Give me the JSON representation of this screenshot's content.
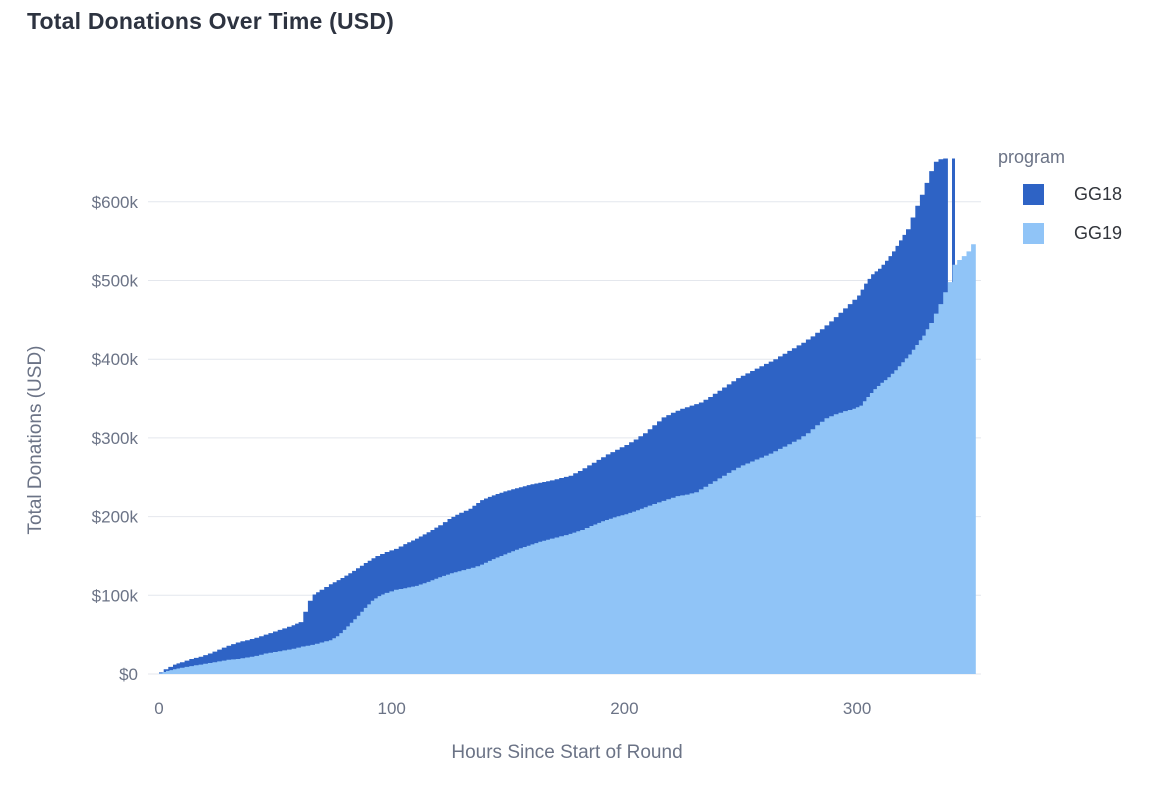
{
  "title": "Total Donations Over Time (USD)",
  "colors": {
    "gg18": "#2e63c5",
    "gg19": "#90c4f7",
    "grid": "#e4e7ed",
    "axis_text": "#6b7386",
    "title_text": "#2d3340",
    "legend_label_text": "#32353b"
  },
  "legend": {
    "title": "program",
    "position": "top-right-outside",
    "entries": [
      {
        "label": "GG18",
        "color": "#2e63c5"
      },
      {
        "label": "GG19",
        "color": "#90c4f7"
      }
    ]
  },
  "chart_data": {
    "type": "area",
    "subtype": "layered-cumulative-step",
    "title": "Total Donations Over Time (USD)",
    "xlabel": "Hours Since Start of Round",
    "ylabel": "Total Donations (USD)",
    "grid": true,
    "x_domain_hours": [
      0,
      351
    ],
    "y_domain_usd_k": [
      0,
      657
    ],
    "x_tick_values": [
      0,
      100,
      200,
      300
    ],
    "x_tick_labels": [
      "0",
      "100",
      "200",
      "300"
    ],
    "y_tick_values_usd_k": [
      0,
      100,
      200,
      300,
      400,
      500,
      600
    ],
    "y_tick_labels": [
      "$0",
      "$100k",
      "$200k",
      "$300k",
      "$400k",
      "$500k",
      "$600k"
    ],
    "series": [
      {
        "name": "GG18",
        "color": "#2e63c5",
        "units": "[hour, usd_thousands]",
        "points": [
          [
            0,
            2
          ],
          [
            2,
            6
          ],
          [
            4,
            9
          ],
          [
            6,
            12
          ],
          [
            9,
            15
          ],
          [
            13,
            19
          ],
          [
            17,
            22
          ],
          [
            21,
            26
          ],
          [
            25,
            31
          ],
          [
            29,
            36
          ],
          [
            33,
            40
          ],
          [
            37,
            43
          ],
          [
            41,
            46
          ],
          [
            45,
            50
          ],
          [
            49,
            54
          ],
          [
            53,
            58
          ],
          [
            57,
            62
          ],
          [
            60,
            66
          ],
          [
            62,
            79
          ],
          [
            64,
            93
          ],
          [
            66,
            101
          ],
          [
            69,
            107
          ],
          [
            73,
            114
          ],
          [
            78,
            122
          ],
          [
            83,
            131
          ],
          [
            88,
            141
          ],
          [
            93,
            150
          ],
          [
            97,
            155
          ],
          [
            101,
            159
          ],
          [
            105,
            165
          ],
          [
            110,
            172
          ],
          [
            115,
            180
          ],
          [
            120,
            189
          ],
          [
            124,
            197
          ],
          [
            129,
            205
          ],
          [
            133,
            210
          ],
          [
            138,
            221
          ],
          [
            143,
            227
          ],
          [
            148,
            232
          ],
          [
            153,
            236
          ],
          [
            158,
            240
          ],
          [
            163,
            243
          ],
          [
            168,
            246
          ],
          [
            172,
            249
          ],
          [
            176,
            252
          ],
          [
            180,
            258
          ],
          [
            184,
            265
          ],
          [
            188,
            272
          ],
          [
            192,
            279
          ],
          [
            196,
            285
          ],
          [
            200,
            291
          ],
          [
            204,
            298
          ],
          [
            208,
            306
          ],
          [
            212,
            316
          ],
          [
            216,
            326
          ],
          [
            220,
            332
          ],
          [
            224,
            337
          ],
          [
            228,
            341
          ],
          [
            232,
            345
          ],
          [
            236,
            352
          ],
          [
            240,
            360
          ],
          [
            244,
            368
          ],
          [
            248,
            376
          ],
          [
            252,
            382
          ],
          [
            256,
            388
          ],
          [
            260,
            394
          ],
          [
            264,
            400
          ],
          [
            268,
            407
          ],
          [
            272,
            414
          ],
          [
            276,
            421
          ],
          [
            280,
            429
          ],
          [
            284,
            438
          ],
          [
            288,
            448
          ],
          [
            292,
            459
          ],
          [
            296,
            470
          ],
          [
            300,
            481
          ],
          [
            303,
            496
          ],
          [
            306,
            508
          ],
          [
            309,
            515
          ],
          [
            312,
            525
          ],
          [
            315,
            537
          ],
          [
            318,
            551
          ],
          [
            321,
            565
          ],
          [
            323,
            580
          ],
          [
            325,
            595
          ],
          [
            327,
            609
          ],
          [
            329,
            624
          ],
          [
            331,
            639
          ],
          [
            333,
            651
          ],
          [
            335,
            654
          ],
          [
            337,
            655
          ],
          [
            339,
            657
          ]
        ],
        "gap_hours": [
          339,
          340.8
        ],
        "final_spike": {
          "from_hour": 340.8,
          "to_hour": 342.1,
          "value_usd_k": 655
        }
      },
      {
        "name": "GG19",
        "color": "#90c4f7",
        "units": "[hour, usd_thousands]",
        "points": [
          [
            0,
            1
          ],
          [
            3,
            4
          ],
          [
            6,
            6
          ],
          [
            9,
            8
          ],
          [
            13,
            10
          ],
          [
            17,
            12
          ],
          [
            21,
            14
          ],
          [
            25,
            16
          ],
          [
            29,
            18
          ],
          [
            33,
            19
          ],
          [
            37,
            21
          ],
          [
            41,
            23
          ],
          [
            45,
            26
          ],
          [
            49,
            28
          ],
          [
            53,
            30
          ],
          [
            57,
            32
          ],
          [
            61,
            35
          ],
          [
            65,
            37
          ],
          [
            69,
            40
          ],
          [
            73,
            43
          ],
          [
            76,
            48
          ],
          [
            79,
            56
          ],
          [
            82,
            65
          ],
          [
            85,
            74
          ],
          [
            88,
            84
          ],
          [
            91,
            93
          ],
          [
            94,
            99
          ],
          [
            97,
            103
          ],
          [
            101,
            107
          ],
          [
            105,
            109
          ],
          [
            110,
            112
          ],
          [
            115,
            117
          ],
          [
            120,
            123
          ],
          [
            125,
            128
          ],
          [
            130,
            132
          ],
          [
            134,
            135
          ],
          [
            138,
            139
          ],
          [
            143,
            146
          ],
          [
            148,
            152
          ],
          [
            153,
            158
          ],
          [
            158,
            163
          ],
          [
            163,
            168
          ],
          [
            168,
            172
          ],
          [
            172,
            175
          ],
          [
            176,
            178
          ],
          [
            181,
            183
          ],
          [
            185,
            188
          ],
          [
            190,
            194
          ],
          [
            195,
            199
          ],
          [
            200,
            203
          ],
          [
            205,
            208
          ],
          [
            210,
            214
          ],
          [
            214,
            218
          ],
          [
            218,
            222
          ],
          [
            222,
            226
          ],
          [
            226,
            228
          ],
          [
            230,
            231
          ],
          [
            234,
            238
          ],
          [
            238,
            245
          ],
          [
            242,
            252
          ],
          [
            246,
            259
          ],
          [
            250,
            265
          ],
          [
            254,
            270
          ],
          [
            258,
            275
          ],
          [
            262,
            280
          ],
          [
            266,
            286
          ],
          [
            270,
            292
          ],
          [
            274,
            298
          ],
          [
            278,
            306
          ],
          [
            282,
            316
          ],
          [
            286,
            325
          ],
          [
            290,
            330
          ],
          [
            294,
            334
          ],
          [
            298,
            337
          ],
          [
            301,
            341
          ],
          [
            304,
            352
          ],
          [
            307,
            362
          ],
          [
            310,
            370
          ],
          [
            313,
            377
          ],
          [
            316,
            386
          ],
          [
            319,
            396
          ],
          [
            322,
            406
          ],
          [
            325,
            418
          ],
          [
            328,
            430
          ],
          [
            331,
            446
          ],
          [
            333,
            458
          ],
          [
            335,
            470
          ],
          [
            337,
            485
          ],
          [
            339,
            498
          ],
          [
            341,
            520
          ],
          [
            343,
            526
          ],
          [
            345,
            531
          ],
          [
            347,
            537
          ],
          [
            349,
            546
          ],
          [
            351,
            557
          ]
        ]
      }
    ]
  }
}
